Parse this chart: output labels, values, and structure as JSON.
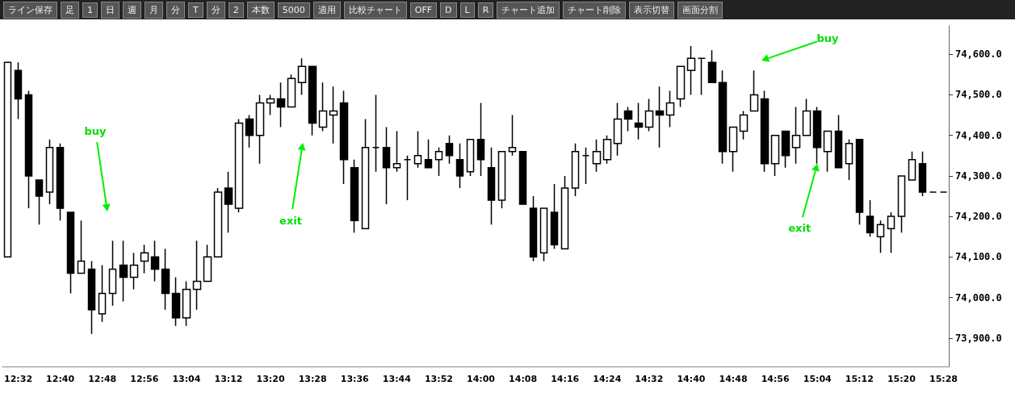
{
  "chart_data": {
    "type": "candlestick",
    "color": "#000000",
    "categories": [
      null,
      "12:32",
      null,
      null,
      null,
      "12:40",
      null,
      null,
      null,
      "12:48",
      null,
      null,
      null,
      "12:56",
      null,
      null,
      null,
      "13:04",
      null,
      null,
      null,
      "13:12",
      null,
      null,
      null,
      "13:20",
      null,
      null,
      null,
      "13:28",
      null,
      null,
      null,
      "13:36",
      null,
      null,
      null,
      "13:44",
      null,
      null,
      null,
      "13:52",
      null,
      null,
      null,
      "14:00",
      null,
      null,
      null,
      "14:08",
      null,
      null,
      null,
      "14:16",
      null,
      null,
      null,
      "14:24",
      null,
      null,
      null,
      "14:32",
      null,
      null,
      null,
      "14:40",
      null,
      null,
      null,
      "14:48",
      null,
      null,
      null,
      "14:56",
      null,
      null,
      null,
      "15:04",
      null,
      null,
      null,
      "15:12",
      null,
      null,
      null,
      "15:20",
      null,
      null,
      null,
      "15:28"
    ],
    "ohlc": [
      [
        74100,
        74580,
        74100,
        74580
      ],
      [
        74560,
        74580,
        74440,
        74490
      ],
      [
        74500,
        74510,
        74220,
        74300
      ],
      [
        74290,
        74290,
        74180,
        74250
      ],
      [
        74260,
        74390,
        74230,
        74370
      ],
      [
        74370,
        74380,
        74190,
        74220
      ],
      [
        74210,
        74210,
        74010,
        74060
      ],
      [
        74060,
        74190,
        74060,
        74090
      ],
      [
        74070,
        74090,
        73910,
        73970
      ],
      [
        73960,
        74080,
        73940,
        74010
      ],
      [
        74010,
        74140,
        73980,
        74070
      ],
      [
        74080,
        74140,
        73990,
        74050
      ],
      [
        74050,
        74110,
        74020,
        74080
      ],
      [
        74090,
        74130,
        74060,
        74110
      ],
      [
        74100,
        74140,
        74040,
        74070
      ],
      [
        74070,
        74120,
        73970,
        74010
      ],
      [
        74010,
        74050,
        73930,
        73950
      ],
      [
        73950,
        74040,
        73930,
        74020
      ],
      [
        74020,
        74140,
        73970,
        74040
      ],
      [
        74040,
        74130,
        74040,
        74100
      ],
      [
        74100,
        74270,
        74100,
        74260
      ],
      [
        74270,
        74310,
        74160,
        74230
      ],
      [
        74220,
        74440,
        74210,
        74430
      ],
      [
        74440,
        74450,
        74370,
        74400
      ],
      [
        74400,
        74500,
        74330,
        74480
      ],
      [
        74480,
        74500,
        74450,
        74490
      ],
      [
        74490,
        74530,
        74420,
        74470
      ],
      [
        74470,
        74550,
        74470,
        74540
      ],
      [
        74530,
        74590,
        74500,
        74570
      ],
      [
        74570,
        74570,
        74400,
        74430
      ],
      [
        74420,
        74530,
        74410,
        74460
      ],
      [
        74450,
        74520,
        74380,
        74460
      ],
      [
        74480,
        74510,
        74280,
        74340
      ],
      [
        74320,
        74340,
        74160,
        74190
      ],
      [
        74170,
        74440,
        74170,
        74370
      ],
      [
        74370,
        74500,
        74310,
        74370
      ],
      [
        74370,
        74420,
        74230,
        74320
      ],
      [
        74320,
        74410,
        74310,
        74330
      ],
      [
        74340,
        74350,
        74240,
        74340
      ],
      [
        74330,
        74410,
        74320,
        74350
      ],
      [
        74340,
        74390,
        74320,
        74320
      ],
      [
        74340,
        74370,
        74300,
        74360
      ],
      [
        74380,
        74400,
        74330,
        74350
      ],
      [
        74340,
        74380,
        74270,
        74300
      ],
      [
        74310,
        74390,
        74300,
        74390
      ],
      [
        74390,
        74480,
        74300,
        74340
      ],
      [
        74320,
        74370,
        74180,
        74240
      ],
      [
        74240,
        74360,
        74220,
        74360
      ],
      [
        74360,
        74450,
        74350,
        74370
      ],
      [
        74360,
        74360,
        74230,
        74230
      ],
      [
        74220,
        74250,
        74090,
        74100
      ],
      [
        74110,
        74220,
        74090,
        74220
      ],
      [
        74210,
        74280,
        74120,
        74130
      ],
      [
        74120,
        74300,
        74120,
        74270
      ],
      [
        74270,
        74380,
        74250,
        74360
      ],
      [
        74350,
        74370,
        74280,
        74350
      ],
      [
        74330,
        74390,
        74310,
        74360
      ],
      [
        74340,
        74400,
        74330,
        74390
      ],
      [
        74380,
        74480,
        74350,
        74440
      ],
      [
        74460,
        74470,
        74410,
        74440
      ],
      [
        74430,
        74480,
        74390,
        74420
      ],
      [
        74420,
        74490,
        74410,
        74460
      ],
      [
        74460,
        74520,
        74370,
        74450
      ],
      [
        74450,
        74510,
        74420,
        74480
      ],
      [
        74490,
        74570,
        74470,
        74570
      ],
      [
        74560,
        74620,
        74500,
        74590
      ],
      [
        74590,
        74590,
        74500,
        74590
      ],
      [
        74580,
        74610,
        74530,
        74530
      ],
      [
        74530,
        74560,
        74330,
        74360
      ],
      [
        74360,
        74420,
        74310,
        74420
      ],
      [
        74410,
        74460,
        74390,
        74450
      ],
      [
        74460,
        74560,
        74460,
        74500
      ],
      [
        74490,
        74510,
        74310,
        74330
      ],
      [
        74330,
        74400,
        74300,
        74400
      ],
      [
        74410,
        74410,
        74320,
        74350
      ],
      [
        74370,
        74470,
        74330,
        74400
      ],
      [
        74400,
        74490,
        74400,
        74460
      ],
      [
        74460,
        74470,
        74330,
        74370
      ],
      [
        74360,
        74410,
        74310,
        74410
      ],
      [
        74410,
        74450,
        74320,
        74320
      ],
      [
        74330,
        74390,
        74290,
        74380
      ],
      [
        74390,
        74390,
        74180,
        74210
      ],
      [
        74200,
        74240,
        74150,
        74160
      ],
      [
        74150,
        74190,
        74110,
        74180
      ],
      [
        74170,
        74210,
        74110,
        74200
      ],
      [
        74200,
        74300,
        74160,
        74300
      ],
      [
        74290,
        74360,
        74290,
        74340
      ],
      [
        74330,
        74360,
        74250,
        74260
      ],
      [
        74260,
        74260,
        74260,
        74260
      ],
      [
        74260,
        74260,
        74260,
        74260
      ]
    ],
    "ylim": [
      73830,
      74670
    ],
    "yticks": [
      {
        "value": 73900,
        "label": "73,900.0"
      },
      {
        "value": 74000,
        "label": "74,000.0"
      },
      {
        "value": 74100,
        "label": "74,100.0"
      },
      {
        "value": 74200,
        "label": "74,200.0"
      },
      {
        "value": 74300,
        "label": "74,300.0"
      },
      {
        "value": 74400,
        "label": "74,400.0"
      },
      {
        "value": 74500,
        "label": "74,500.0"
      },
      {
        "value": 74600,
        "label": "74,600.0"
      }
    ],
    "grid": false,
    "annotations": [
      "buy",
      "exit",
      "buy",
      {
        "text": "exit",
        "x": "15:04",
        "y": 74330
      },
      "ライン保存",
      "足",
      "1",
      "日",
      "週",
      "月",
      "分",
      "T",
      "分",
      "2",
      "本数",
      "5000",
      "適用",
      "比較チャート",
      "OFF",
      "D",
      "L",
      "R",
      "チャート追加",
      "チャート削除",
      "表示切替",
      "画面分割"
    ]
  }
}
